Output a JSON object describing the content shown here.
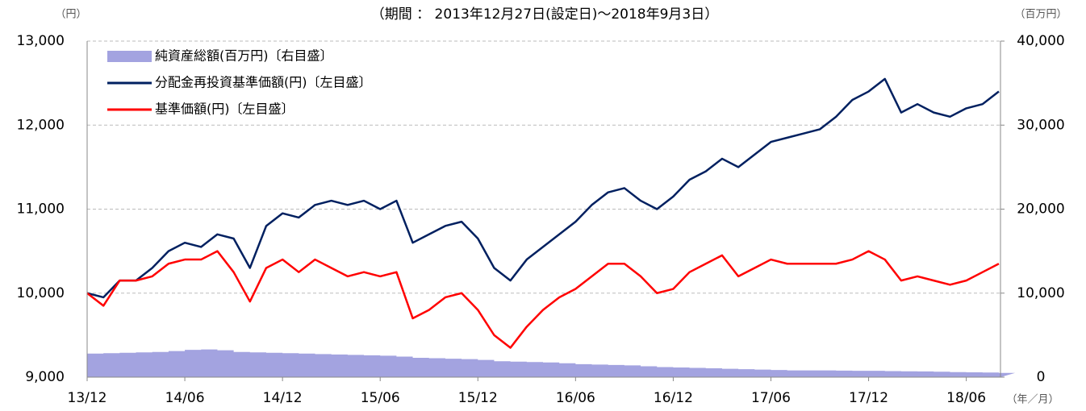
{
  "chart_data": {
    "type": "line",
    "title": "（期間 ： 2013年12月27日(設定日)～2018年9月3日）",
    "y_unit": "（円）",
    "y2_unit": "（百万円）",
    "x_unit": "（年／月）",
    "categories": [
      "13/12",
      null,
      null,
      null,
      null,
      null,
      "14/06",
      null,
      null,
      null,
      null,
      null,
      "14/12",
      null,
      null,
      null,
      null,
      null,
      "15/06",
      null,
      null,
      null,
      null,
      null,
      "15/12",
      null,
      null,
      null,
      null,
      null,
      "16/06",
      null,
      null,
      null,
      null,
      null,
      "16/12",
      null,
      null,
      null,
      null,
      null,
      "17/06",
      null,
      null,
      null,
      null,
      null,
      "17/12",
      null,
      null,
      null,
      null,
      null,
      "18/06",
      null,
      null
    ],
    "ylim": [
      9000,
      13000
    ],
    "yticks": [
      {
        "value": 9000,
        "label": "9,000"
      },
      {
        "value": 10000,
        "label": "10,000"
      },
      {
        "value": 11000,
        "label": "11,000"
      },
      {
        "value": 12000,
        "label": "12,000"
      },
      {
        "value": 13000,
        "label": "13,000"
      }
    ],
    "y2lim": [
      0,
      40000
    ],
    "y2ticks": [
      0,
      {
        "value": 10000,
        "label": "10,000"
      },
      {
        "value": 20000,
        "label": "20,000"
      },
      {
        "value": 30000,
        "label": "30,000"
      },
      {
        "value": 40000,
        "label": "40,000"
      }
    ],
    "grid": true,
    "legend": "upper left",
    "series": [
      {
        "name": "純資産総額(百万円)〔右目盛〕",
        "kind": "area",
        "axis": "y2",
        "color": "#a3a3e0",
        "values": [
          2800,
          2850,
          2900,
          2950,
          3000,
          3100,
          3250,
          3300,
          3200,
          3000,
          2950,
          2900,
          2850,
          2800,
          2750,
          2700,
          2650,
          2600,
          2550,
          2450,
          2300,
          2250,
          2200,
          2150,
          2050,
          1900,
          1850,
          1800,
          1750,
          1650,
          1550,
          1500,
          1450,
          1400,
          1300,
          1200,
          1150,
          1100,
          1050,
          1000,
          950,
          900,
          850,
          800,
          800,
          800,
          780,
          760,
          750,
          720,
          700,
          680,
          650,
          600,
          580,
          550,
          500
        ]
      },
      {
        "name": "分配金再投資基準価額(円)〔左目盛〕",
        "kind": "line",
        "color": "#002060",
        "values": [
          10000,
          9950,
          10150,
          10150,
          10300,
          10500,
          10600,
          10550,
          10700,
          10650,
          10300,
          10800,
          10950,
          10900,
          11050,
          11100,
          11050,
          11100,
          11000,
          11100,
          10600,
          10700,
          10800,
          10850,
          10650,
          10300,
          10150,
          10400,
          10550,
          10700,
          10850,
          11050,
          11200,
          11250,
          11100,
          11000,
          11150,
          11350,
          11450,
          11600,
          11500,
          11650,
          11800,
          11850,
          11900,
          11950,
          12100,
          12300,
          12400,
          12550,
          12150,
          12250,
          12150,
          12100,
          12200,
          12250,
          12400
        ]
      },
      {
        "name": "基準価額(円)〔左目盛〕",
        "kind": "line",
        "color": "#ff0000",
        "values": [
          10000,
          9850,
          10150,
          10150,
          10200,
          10350,
          10400,
          10400,
          10500,
          10250,
          9900,
          10300,
          10400,
          10250,
          10400,
          10300,
          10200,
          10250,
          10200,
          10250,
          9700,
          9800,
          9950,
          10000,
          9800,
          9500,
          9350,
          9600,
          9800,
          9950,
          10050,
          10200,
          10350,
          10350,
          10200,
          10000,
          10050,
          10250,
          10350,
          10450,
          10200,
          10300,
          10400,
          10350,
          10350,
          10350,
          10350,
          10400,
          10500,
          10400,
          10150,
          10200,
          10150,
          10100,
          10150,
          10250,
          10350
        ]
      }
    ]
  }
}
